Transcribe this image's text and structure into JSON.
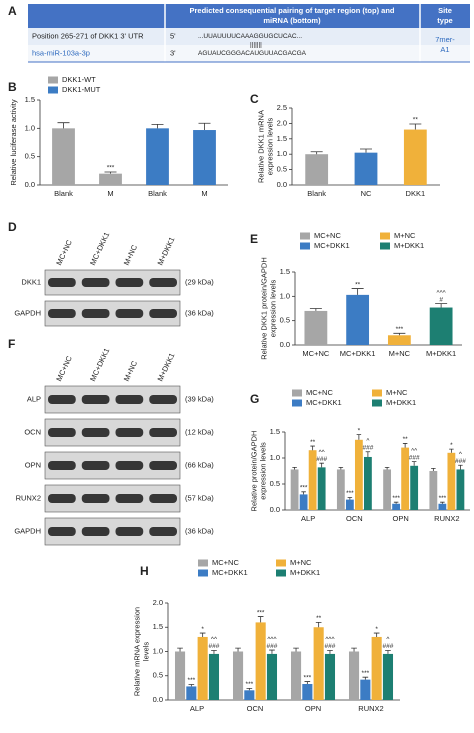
{
  "panel_a": {
    "panel": "A",
    "header": {
      "col2": [
        "Predicted consequential pairing of target region (top) and",
        "miRNA (bottom)"
      ],
      "col3": [
        "Site",
        "type"
      ]
    },
    "rows": [
      {
        "name": "Position 265-271 of DKK1 3' UTR",
        "end": "5'",
        "sequence": "...UUAUUUUCAAAGGUGCUCAC..."
      },
      {
        "name": "hsa-miR-103a-3p",
        "end": "3'",
        "sequence": "AGUAUCGGGACAUGUUACGACGA"
      }
    ],
    "pairing": "|||||||",
    "site_type": [
      "7mer-",
      "A1"
    ]
  },
  "blots": [
    {
      "panel": "D",
      "lanes": [
        "MC+NC",
        "MC+DKK1",
        "M+NC",
        "M+DKK1"
      ],
      "rows": [
        {
          "label": "DKK1",
          "size": "(29 kDa)"
        },
        {
          "label": "GAPDH",
          "size": "(36 kDa)"
        }
      ]
    },
    {
      "panel": "F",
      "lanes": [
        "MC+NC",
        "MC+DKK1",
        "M+NC",
        "M+DKK1"
      ],
      "rows": [
        {
          "label": "ALP",
          "size": "(39 kDa)"
        },
        {
          "label": "OCN",
          "size": "(12 kDa)"
        },
        {
          "label": "OPN",
          "size": "(66 kDa)"
        },
        {
          "label": "RUNX2",
          "size": "(57 kDa)"
        },
        {
          "label": "GAPDH",
          "size": "(36 kDa)"
        }
      ]
    }
  ],
  "chart_data": [
    {
      "panel": "B",
      "type": "bar",
      "y_label": [
        "Relative luciferase activity"
      ],
      "categories": [
        "Blank",
        "M",
        "Blank",
        "M"
      ],
      "series": [
        {
          "name": "DKK1-WT",
          "color": "#a6a6a6",
          "values": [
            1.0,
            0.2,
            null,
            null
          ],
          "errors": [
            0.1,
            0.03,
            null,
            null
          ],
          "labels": [
            null,
            [
              "***"
            ],
            null,
            null
          ]
        },
        {
          "name": "DKK1-MUT",
          "color": "#3c7cc4",
          "values": [
            null,
            null,
            1.0,
            0.97
          ],
          "errors": [
            null,
            null,
            0.07,
            0.12
          ]
        }
      ],
      "ylim": [
        0,
        1.5
      ],
      "yticks": [
        {
          "value": 0,
          "label": "0.0"
        },
        {
          "value": 0.5,
          "label": "0.5"
        },
        {
          "value": 1,
          "label": "1.0"
        },
        {
          "value": 1.5,
          "label": "1.5"
        }
      ]
    },
    {
      "panel": "C",
      "type": "bar",
      "y_label": [
        "Relative DKK1 mRNA",
        "expression levels"
      ],
      "categories": [
        "Blank",
        "NC",
        "DKK1"
      ],
      "series": [
        {
          "colors": [
            "#a6a6a6",
            "#3c7cc4",
            "#f0b13a"
          ],
          "values": [
            1.0,
            1.05,
            1.8
          ],
          "errors": [
            0.08,
            0.12,
            0.18
          ],
          "labels": [
            null,
            null,
            [
              "**"
            ]
          ]
        }
      ],
      "ylim": [
        0,
        2.5
      ],
      "yticks": [
        {
          "value": 0,
          "label": "0.0"
        },
        {
          "value": 0.5,
          "label": "0.5"
        },
        {
          "value": 1,
          "label": "1.0"
        },
        {
          "value": 1.5,
          "label": "1.5"
        },
        {
          "value": 2,
          "label": "2.0"
        },
        {
          "value": 2.5,
          "label": "2.5"
        }
      ]
    },
    {
      "panel": "E",
      "type": "bar",
      "y_label": [
        "Relative DKK1 protein/GAPDH",
        "expression levels"
      ],
      "categories": [
        "MC+NC",
        "MC+DKK1",
        "M+NC",
        "M+DKK1"
      ],
      "series": [
        {
          "name": "MC+NC",
          "color": "#a6a6a6",
          "values": [
            0.7,
            null,
            null,
            null
          ],
          "errors": [
            0.05,
            null,
            null,
            null
          ]
        },
        {
          "name": "MC+DKK1",
          "color": "#3c7cc4",
          "values": [
            null,
            1.03,
            null,
            null
          ],
          "errors": [
            null,
            0.13,
            null,
            null
          ],
          "labels": [
            null,
            [
              "**"
            ],
            null,
            null
          ]
        },
        {
          "name": "M+NC",
          "color": "#f0b13a",
          "values": [
            null,
            null,
            0.2,
            null
          ],
          "errors": [
            null,
            null,
            0.04,
            null
          ],
          "labels": [
            null,
            null,
            [
              "***"
            ],
            null
          ]
        },
        {
          "name": "M+DKK1",
          "color": "#1d7f72",
          "values": [
            null,
            null,
            null,
            0.77
          ],
          "errors": [
            null,
            null,
            null,
            0.08
          ],
          "labels": [
            null,
            null,
            null,
            [
              "^^^",
              "#"
            ]
          ]
        }
      ],
      "ylim": [
        0,
        1.5
      ],
      "yticks": [
        {
          "value": 0,
          "label": "0.0"
        },
        {
          "value": 0.5,
          "label": "0.5"
        },
        {
          "value": 1,
          "label": "1.0"
        },
        {
          "value": 1.5,
          "label": "1.5"
        }
      ]
    },
    {
      "panel": "G",
      "type": "bar",
      "y_label": [
        "Relative protein/GAPDH",
        "expression levels"
      ],
      "categories": [
        "ALP",
        "OCN",
        "OPN",
        "RUNX2"
      ],
      "series": [
        {
          "name": "MC+NC",
          "color": "#a6a6a6",
          "values": [
            0.78,
            0.78,
            0.78,
            0.75
          ],
          "errors": [
            0.04,
            0.04,
            0.04,
            0.05
          ]
        },
        {
          "name": "MC+DKK1",
          "color": "#3c7cc4",
          "values": [
            0.3,
            0.2,
            0.12,
            0.12
          ],
          "errors": [
            0.05,
            0.04,
            0.03,
            0.03
          ],
          "labels": [
            [
              "***"
            ],
            [
              "***"
            ],
            [
              "***"
            ],
            [
              "***"
            ]
          ]
        },
        {
          "name": "M+NC",
          "color": "#f0b13a",
          "values": [
            1.15,
            1.35,
            1.2,
            1.1
          ],
          "errors": [
            0.08,
            0.1,
            0.08,
            0.07
          ],
          "labels": [
            [
              "**"
            ],
            [
              "*"
            ],
            [
              "**"
            ],
            [
              "*"
            ]
          ]
        },
        {
          "name": "M+DKK1",
          "color": "#1d7f72",
          "values": [
            0.82,
            1.02,
            0.85,
            0.78
          ],
          "errors": [
            0.08,
            0.1,
            0.08,
            0.08
          ],
          "labels": [
            [
              "^^",
              "###"
            ],
            [
              "^",
              "###"
            ],
            [
              "^^",
              "###"
            ],
            [
              "^",
              "###"
            ]
          ]
        }
      ],
      "ylim": [
        0,
        1.5
      ],
      "yticks": [
        {
          "value": 0,
          "label": "0.0"
        },
        {
          "value": 0.5,
          "label": "0.5"
        },
        {
          "value": 1,
          "label": "1.0"
        },
        {
          "value": 1.5,
          "label": "1.5"
        }
      ]
    },
    {
      "panel": "H",
      "type": "bar",
      "y_label": [
        "Relative mRNA expression",
        "levels"
      ],
      "categories": [
        "ALP",
        "OCN",
        "OPN",
        "RUNX2"
      ],
      "series": [
        {
          "name": "MC+NC",
          "color": "#a6a6a6",
          "values": [
            1.0,
            1.0,
            1.0,
            1.0
          ],
          "errors": [
            0.07,
            0.07,
            0.07,
            0.07
          ]
        },
        {
          "name": "MC+DKK1",
          "color": "#3c7cc4",
          "values": [
            0.28,
            0.2,
            0.33,
            0.42
          ],
          "errors": [
            0.04,
            0.04,
            0.05,
            0.05
          ],
          "labels": [
            [
              "***"
            ],
            [
              "***"
            ],
            [
              "***"
            ],
            [
              "***"
            ]
          ]
        },
        {
          "name": "M+NC",
          "color": "#f0b13a",
          "values": [
            1.3,
            1.6,
            1.5,
            1.3
          ],
          "errors": [
            0.08,
            0.12,
            0.1,
            0.08
          ],
          "labels": [
            [
              "*"
            ],
            [
              "***"
            ],
            [
              "**"
            ],
            [
              "*"
            ]
          ]
        },
        {
          "name": "M+DKK1",
          "color": "#1d7f72",
          "values": [
            0.95,
            0.95,
            0.95,
            0.95
          ],
          "errors": [
            0.07,
            0.08,
            0.07,
            0.07
          ],
          "labels": [
            [
              "^^",
              "###"
            ],
            [
              "^^^",
              "###"
            ],
            [
              "^^^",
              "###"
            ],
            [
              "^",
              "###"
            ]
          ]
        }
      ],
      "ylim": [
        0,
        2
      ],
      "yticks": [
        {
          "value": 0,
          "label": "0.0"
        },
        {
          "value": 0.5,
          "label": "0.5"
        },
        {
          "value": 1,
          "label": "1.0"
        },
        {
          "value": 1.5,
          "label": "1.5"
        },
        {
          "value": 2,
          "label": "2.0"
        }
      ]
    }
  ]
}
